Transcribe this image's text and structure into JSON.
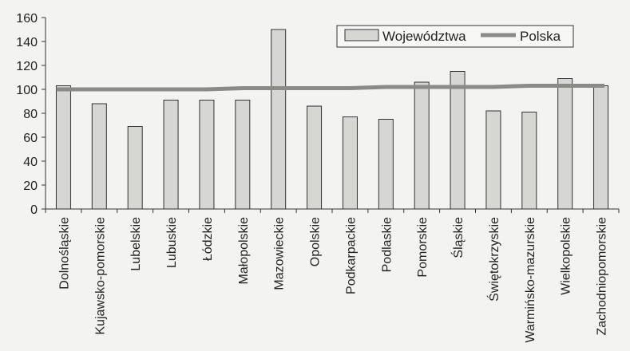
{
  "chart_data": {
    "type": "bar",
    "categories": [
      "Dolnośląskie",
      "Kujawsko-pomorskie",
      "Lubelskie",
      "Lubuskie",
      "Łódzkie",
      "Małopolskie",
      "Mazowieckie",
      "Opolskie",
      "Podkarpackie",
      "Podlaskie",
      "Pomorskie",
      "Śląskie",
      "Świętokrzyskie",
      "Warmińsko-mazurskie",
      "Wielkopolskie",
      "Zachodniopomorskie"
    ],
    "series": [
      {
        "name": "Województwa",
        "type": "bar",
        "color": "#d6d6d2",
        "values": [
          103,
          88,
          69,
          91,
          91,
          91,
          150,
          86,
          77,
          75,
          106,
          115,
          82,
          81,
          109,
          103
        ]
      },
      {
        "name": "Polska",
        "type": "line",
        "color": "#8a8a86",
        "values": [
          100,
          100,
          100,
          100,
          100,
          101,
          101,
          101,
          101,
          102,
          102,
          102,
          102,
          103,
          103,
          103
        ]
      }
    ],
    "yticks": [
      0,
      20,
      40,
      60,
      80,
      100,
      120,
      140,
      160
    ],
    "ylim": [
      0,
      160
    ],
    "grid": false,
    "legend": "top-right",
    "title": "",
    "xlabel": "",
    "ylabel": ""
  }
}
